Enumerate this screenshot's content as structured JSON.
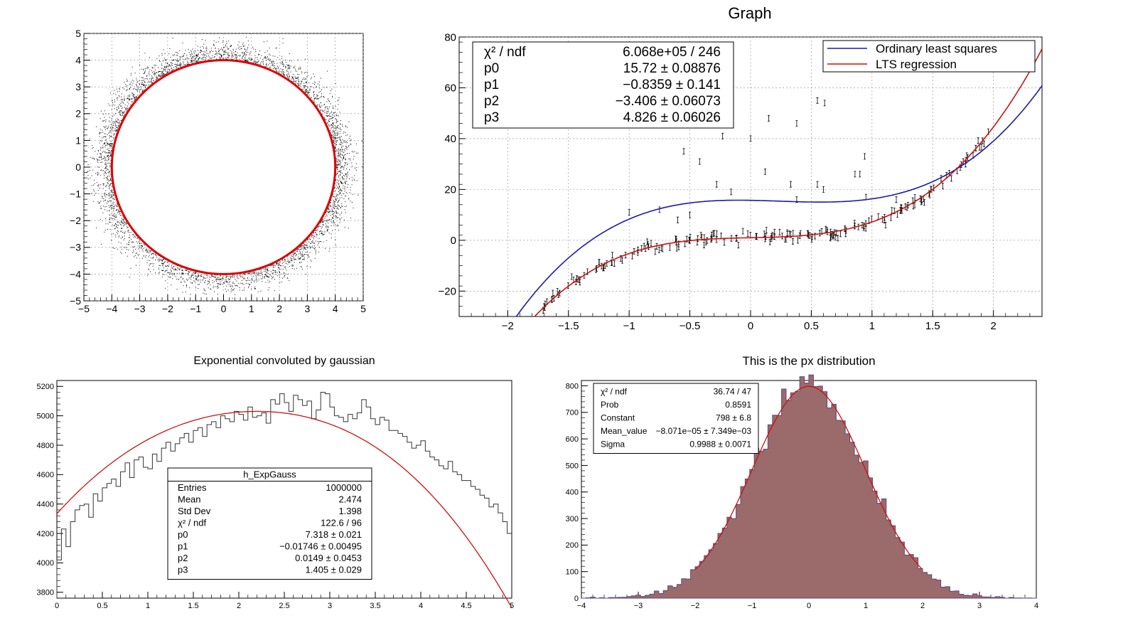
{
  "chart_data": [
    {
      "type": "scatter",
      "title": "",
      "xlabel": "",
      "ylabel": "",
      "xlim": [
        -5,
        5
      ],
      "ylim": [
        -5,
        5
      ],
      "grid": true,
      "xticks": [
        "−5",
        "−4",
        "−3",
        "−2",
        "−1",
        "0",
        "1",
        "2",
        "3",
        "4",
        "5"
      ],
      "yticks": [
        "−5",
        "−4",
        "−3",
        "−2",
        "−1",
        "0",
        "1",
        "2",
        "3",
        "4",
        "5"
      ],
      "points_description_radius_mean": 4.0,
      "points_description_radius_spread": 0.35,
      "fit_circle": {
        "cx": 0,
        "cy": 0,
        "r": 4.0,
        "color": "#dd0000"
      }
    },
    {
      "type": "scatter",
      "title": "Graph",
      "xlabel": "",
      "ylabel": "",
      "xlim": [
        -2.4,
        2.4
      ],
      "ylim": [
        -30,
        80
      ],
      "grid": true,
      "xticks": [
        "−2",
        "−1.5",
        "−1",
        "−0.5",
        "0",
        "0.5",
        "1",
        "1.5",
        "2"
      ],
      "yticks": [
        "−20",
        "0",
        "20",
        "40",
        "60",
        "80"
      ],
      "legend": {
        "placement": "top-right",
        "entries": [
          "Ordinary least squares",
          "LTS regression"
        ]
      },
      "stats": {
        "labels": [
          "χ² / ndf",
          "p0",
          "p1",
          "p2",
          "p3"
        ],
        "values": [
          "6.068e+05 / 246",
          "15.72 ± 0.08876",
          "−0.8359 ± 0.141",
          "−3.406 ± 0.06073",
          "4.826 ± 0.06026"
        ]
      },
      "series": [
        {
          "name": "Ordinary least squares",
          "type": "curve",
          "coefficients": [
            15.72,
            -0.8359,
            -3.406,
            4.826
          ],
          "color": "#1a1aaa"
        },
        {
          "name": "LTS regression",
          "type": "curve",
          "coefficients": [
            1.0,
            1.0,
            0.0,
            5.2
          ],
          "color": "#cc1111"
        }
      ],
      "outliers": [
        [
          0.55,
          55
        ],
        [
          0.61,
          54
        ],
        [
          0.15,
          48
        ],
        [
          0.38,
          46
        ],
        [
          -0.23,
          41
        ],
        [
          0.0,
          40
        ],
        [
          -0.55,
          35
        ],
        [
          0.94,
          33
        ],
        [
          -0.42,
          31
        ],
        [
          0.12,
          27
        ],
        [
          0.86,
          26
        ],
        [
          0.9,
          26
        ],
        [
          -0.28,
          22
        ],
        [
          0.33,
          22
        ],
        [
          0.55,
          22
        ],
        [
          0.6,
          20
        ],
        [
          -0.16,
          19
        ],
        [
          0.95,
          17
        ],
        [
          -1.0,
          11
        ],
        [
          -0.75,
          12
        ],
        [
          -0.6,
          8
        ],
        [
          0.38,
          16
        ],
        [
          -0.5,
          10
        ],
        [
          1.2,
          16
        ]
      ]
    },
    {
      "type": "bar",
      "title": "Exponential convoluted by gaussian",
      "xlabel": "",
      "ylabel": "",
      "xlim": [
        0,
        5
      ],
      "ylim": [
        3760,
        5240
      ],
      "xticks": [
        "0",
        "0.5",
        "1",
        "1.5",
        "2",
        "2.5",
        "3",
        "3.5",
        "4",
        "4.5",
        "5"
      ],
      "yticks": [
        "3800",
        "4000",
        "4200",
        "4400",
        "4600",
        "4800",
        "5000",
        "5200"
      ],
      "bins": 100,
      "values": [
        4020,
        4230,
        4110,
        4280,
        4360,
        4390,
        4400,
        4310,
        4470,
        4420,
        4510,
        4540,
        4570,
        4520,
        4620,
        4680,
        4580,
        4700,
        4720,
        4650,
        4640,
        4740,
        4690,
        4780,
        4820,
        4760,
        4810,
        4850,
        4880,
        4820,
        4900,
        4920,
        4860,
        4940,
        4960,
        4920,
        5000,
        4980,
        4960,
        5030,
        5010,
        4970,
        5060,
        4990,
        5000,
        5020,
        4950,
        5110,
        5080,
        5150,
        5090,
        5030,
        5140,
        5110,
        5070,
        5100,
        4980,
        5040,
        5160,
        5150,
        5060,
        5000,
        4990,
        4960,
        5010,
        4980,
        5020,
        5110,
        5060,
        4980,
        4940,
        4990,
        4970,
        4900,
        4900,
        4880,
        4860,
        4820,
        4780,
        4800,
        4830,
        4760,
        4720,
        4700,
        4660,
        4640,
        4690,
        4620,
        4600,
        4560,
        4560,
        4520,
        4500,
        4460,
        4440,
        4380,
        4400,
        4340,
        4280,
        4200
      ],
      "fit_color": "#cc1111",
      "stats": {
        "name": "h_ExpGauss",
        "labels": [
          "Entries",
          "Mean",
          "Std Dev",
          "χ² / ndf",
          "p0",
          "p1",
          "p2",
          "p3"
        ],
        "values": [
          "1000000",
          "2.474",
          "1.398",
          "122.6 / 96",
          "7.318 ± 0.021",
          "−0.01746 ± 0.00495",
          "0.0149 ± 0.0453",
          "1.405 ± 0.029"
        ]
      }
    },
    {
      "type": "bar",
      "title": "This is the px distribution",
      "xlabel": "",
      "ylabel": "",
      "xlim": [
        -4,
        4
      ],
      "ylim": [
        0,
        820
      ],
      "xticks": [
        "−4",
        "−3",
        "−2",
        "−1",
        "0",
        "1",
        "2",
        "3",
        "4"
      ],
      "yticks": [
        "0",
        "100",
        "200",
        "300",
        "400",
        "500",
        "600",
        "700",
        "800"
      ],
      "bins": 100,
      "fill_color": "#9b6a6a",
      "fit_color": "#cc1111",
      "gaussian": {
        "constant": 798,
        "mean": 0,
        "sigma": 0.9988
      },
      "stats": {
        "labels": [
          "χ² / ndf",
          "Prob",
          "Constant",
          "Mean_value",
          "Sigma"
        ],
        "values": [
          "36.74 / 47",
          "0.8591",
          "798 ± 6.8",
          "−8.071e−05 ± 7.349e−03",
          "0.9988 ± 0.0071"
        ]
      }
    }
  ]
}
